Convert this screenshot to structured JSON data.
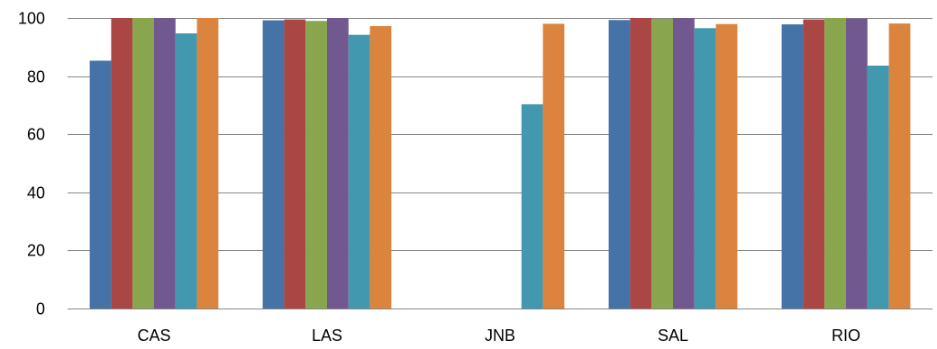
{
  "chart_data": {
    "type": "bar",
    "title": "",
    "xlabel": "",
    "ylabel": "",
    "ylim": [
      0,
      100
    ],
    "yticks": [
      0,
      20,
      40,
      60,
      80,
      100
    ],
    "grid": true,
    "legend": "none",
    "categories": [
      "CAS",
      "LAS",
      "JNB",
      "SAL",
      "RIO"
    ],
    "series": [
      {
        "color": "#4572A7",
        "values": [
          85.3,
          99.2,
          null,
          99.3,
          97.8
        ]
      },
      {
        "color": "#AA4643",
        "values": [
          100,
          99.5,
          null,
          100,
          99.5
        ]
      },
      {
        "color": "#89A54E",
        "values": [
          100,
          99.0,
          null,
          99.7,
          100
        ]
      },
      {
        "color": "#71588F",
        "values": [
          100,
          100,
          null,
          100,
          99.8
        ]
      },
      {
        "color": "#4198AF",
        "values": [
          94.7,
          94.2,
          70.3,
          96.5,
          83.6
        ]
      },
      {
        "color": "#DB843D",
        "values": [
          100,
          97.2,
          98.0,
          97.9,
          98.1
        ]
      }
    ]
  }
}
